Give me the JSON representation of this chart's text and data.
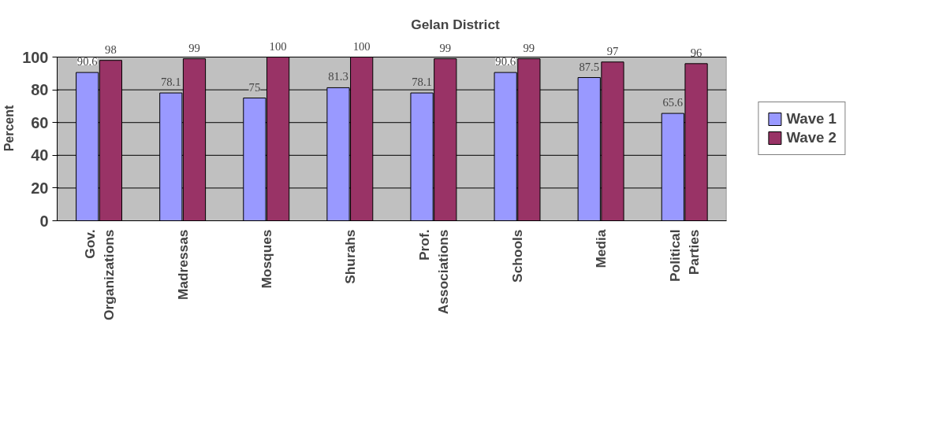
{
  "chart_data": {
    "type": "bar",
    "title": "Gelan District",
    "ylabel": "Percent",
    "categories": [
      "Gov.\nOrganizations",
      "Madressas",
      "Mosques",
      "Shurahs",
      "Prof.\nAssociations",
      "Schools",
      "Media",
      "Political\nParties"
    ],
    "series": [
      {
        "name": "Wave 1",
        "color": "#9999ff",
        "values": [
          90.6,
          78.1,
          75,
          81.3,
          78.1,
          90.6,
          87.5,
          65.6
        ]
      },
      {
        "name": "Wave 2",
        "color": "#993366",
        "values": [
          98,
          99,
          100,
          100,
          99,
          99,
          97,
          96
        ]
      }
    ],
    "ylim": [
      0,
      100
    ],
    "yticks": [
      0,
      20,
      40,
      60,
      80,
      100
    ],
    "grid": "y",
    "legend": "right",
    "data_labels": true
  }
}
